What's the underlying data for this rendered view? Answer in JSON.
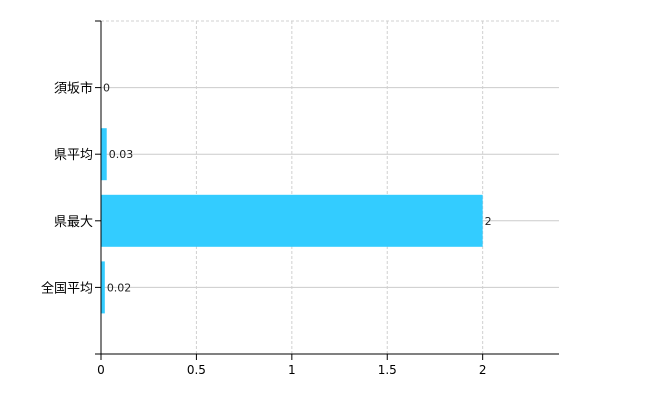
{
  "chart_data": {
    "type": "bar",
    "orientation": "horizontal",
    "title": "",
    "xlabel": "",
    "ylabel": "",
    "categories": [
      "須坂市",
      "県平均",
      "県最大",
      "全国平均"
    ],
    "values": [
      0,
      0.03,
      2,
      0.02
    ],
    "data_labels": [
      "0",
      "0.03",
      "2",
      "0.02"
    ],
    "xlim": [
      0,
      2.4
    ],
    "xticks": [
      0,
      0.5,
      1,
      1.5,
      2
    ],
    "xtick_labels": [
      "0",
      "0.5",
      "1",
      "1.5",
      "2"
    ],
    "grid": true,
    "bar_color": "#33ccff"
  }
}
